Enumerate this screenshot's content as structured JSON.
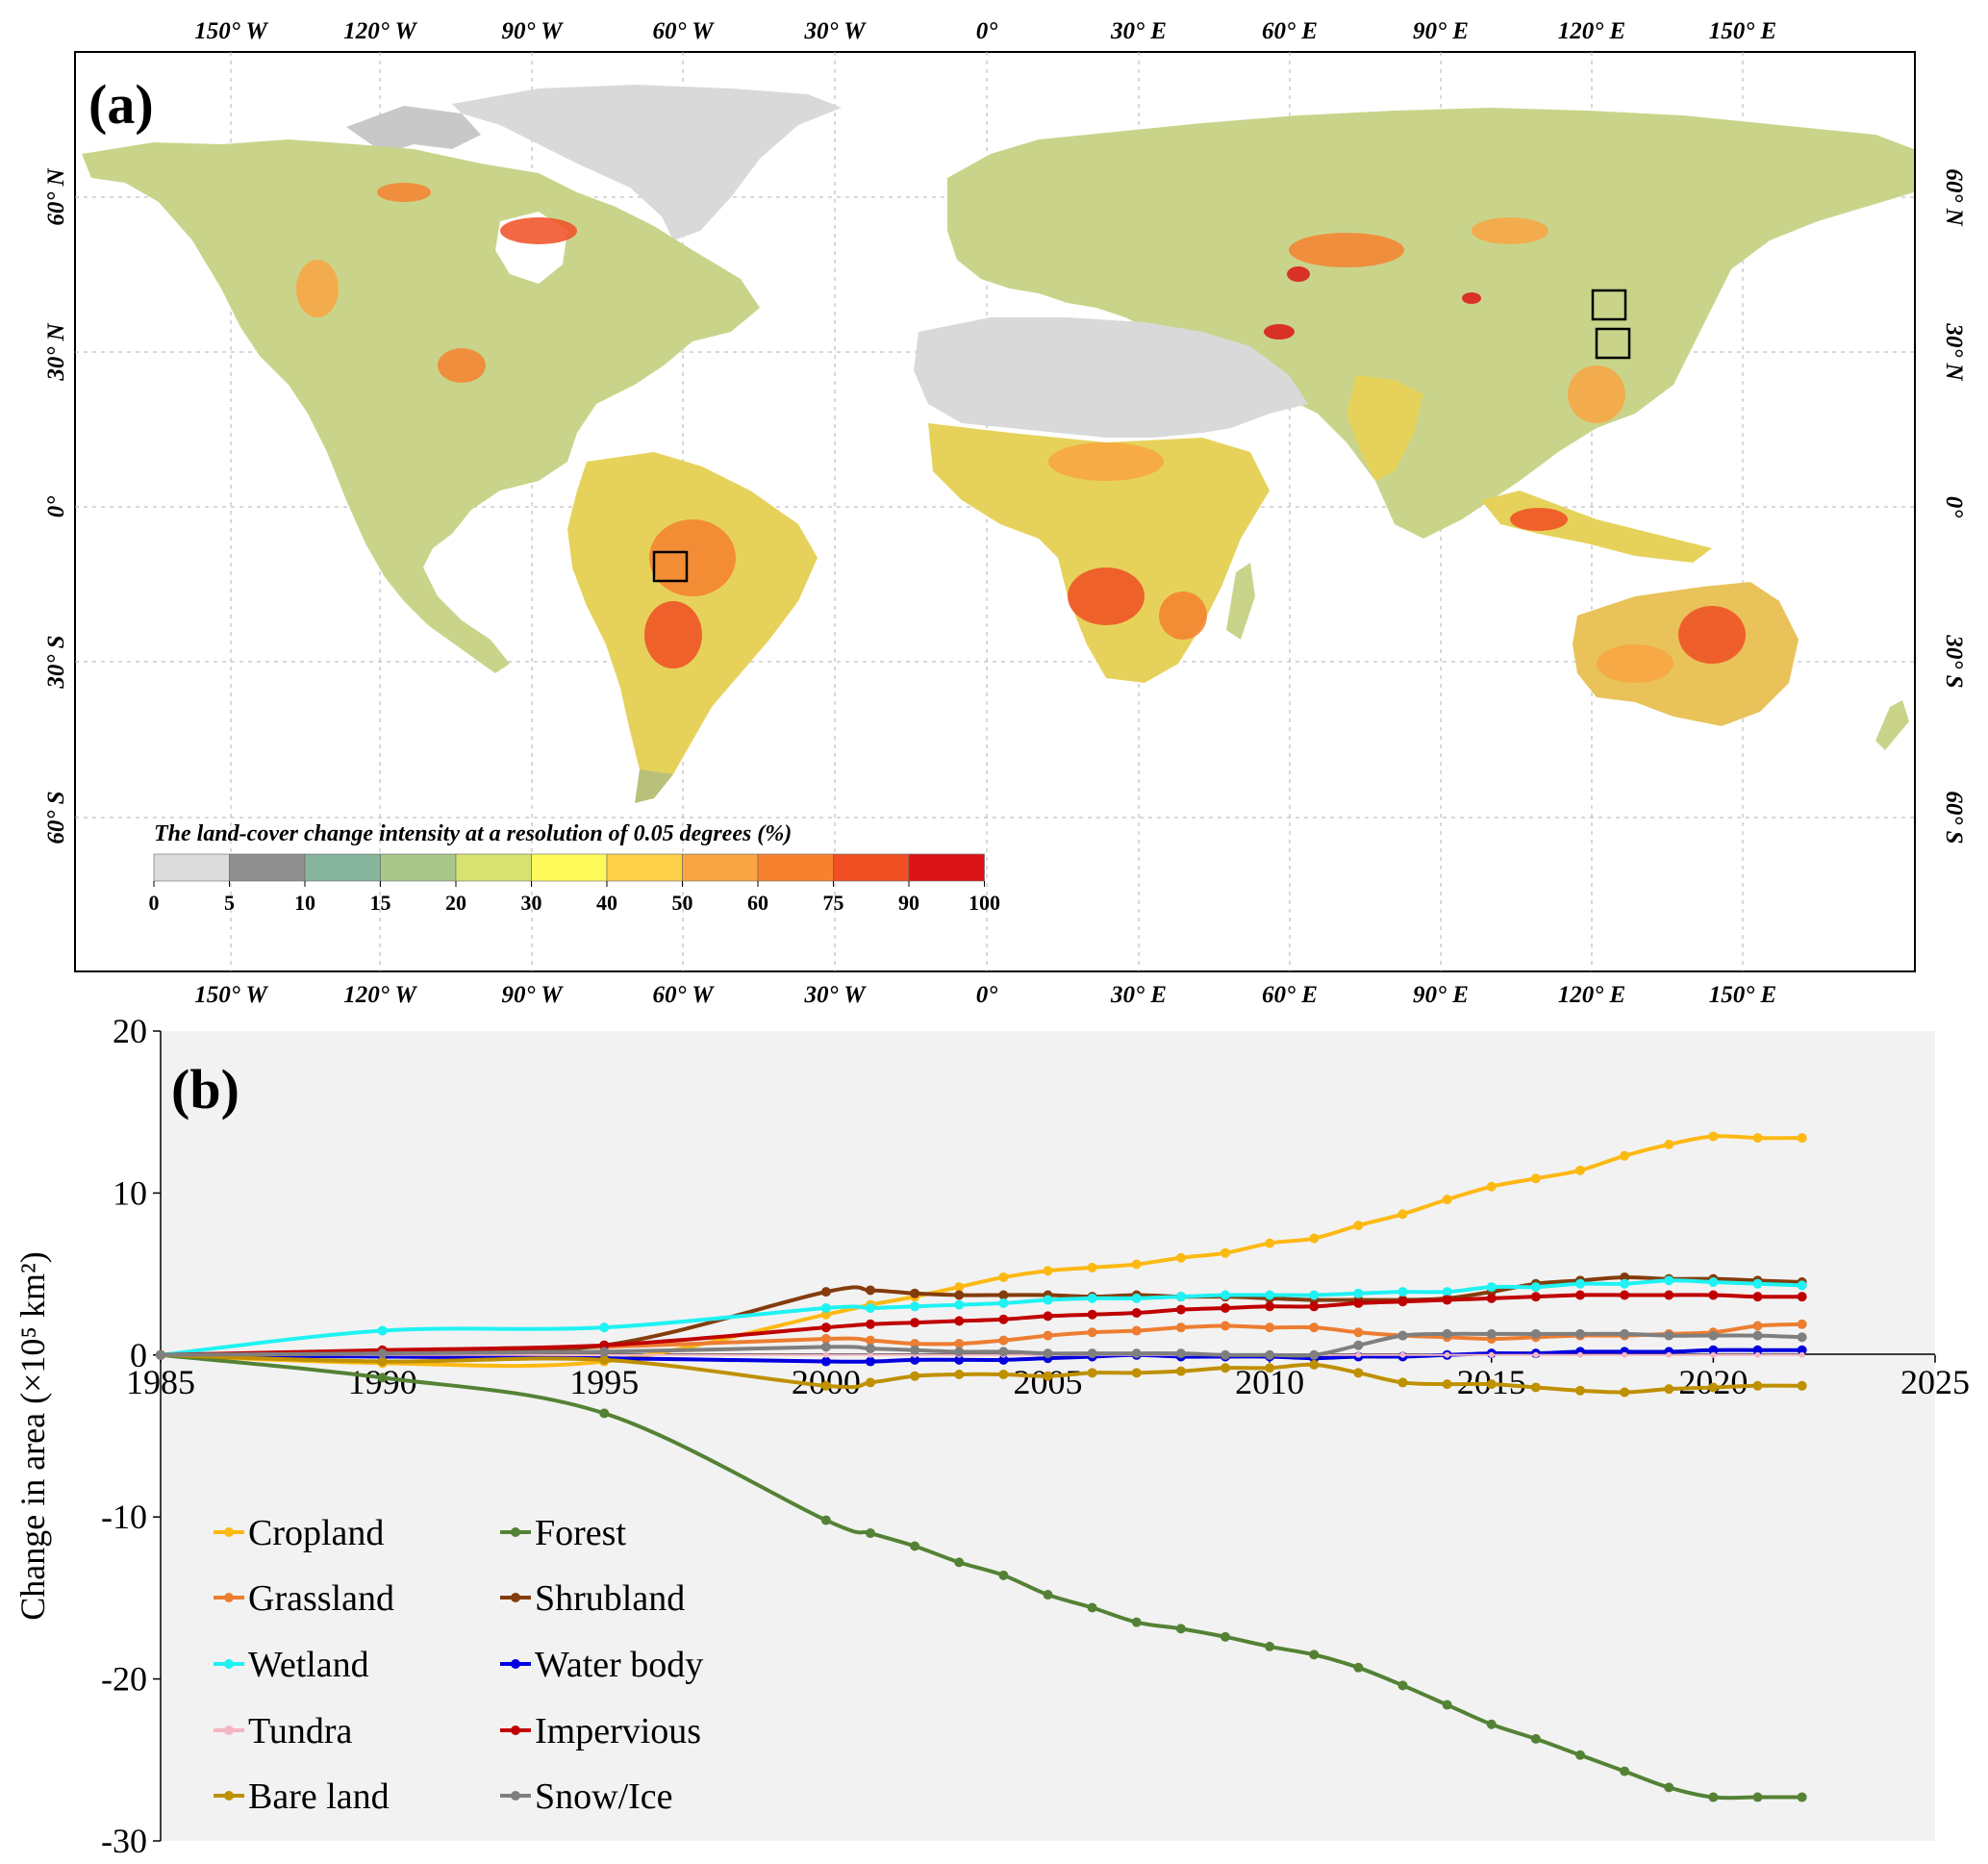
{
  "panel_a": {
    "label": "(a)",
    "lon_ticks": [
      "150° W",
      "120° W",
      "90° W",
      "60° W",
      "30° W",
      "0°",
      "30° E",
      "60° E",
      "90° E",
      "120° E",
      "150° E"
    ],
    "lat_ticks": [
      "60° N",
      "30° N",
      "0°",
      "30° S",
      "60° S"
    ],
    "legend_title": "The land-cover change intensity at a resolution of 0.05 degrees (%)",
    "legend_ticks": [
      "0",
      "5",
      "10",
      "15",
      "20",
      "30",
      "40",
      "50",
      "60",
      "75",
      "90",
      "100"
    ],
    "legend_colors": [
      "#dcdcdc",
      "#8f8f8f",
      "#86b49d",
      "#a9c78b",
      "#d7e371",
      "#fdfa5a",
      "#fdd04a",
      "#f9a542",
      "#f6822f",
      "#f04e23",
      "#dc1417"
    ]
  },
  "chart_data": {
    "type": "line",
    "label": "(b)",
    "xlabel": "",
    "ylabel": "Change in area (×10⁵ km²)",
    "xlim": [
      1985,
      2025
    ],
    "ylim": [
      -30,
      20
    ],
    "xticks": [
      "1985",
      "1990",
      "1995",
      "2000",
      "2005",
      "2010",
      "2015",
      "2020",
      "2025"
    ],
    "yticks": [
      "20",
      "10",
      "0",
      "-10",
      "-20",
      "-30"
    ],
    "x": [
      1985,
      1990,
      1995,
      2000,
      2001,
      2002,
      2003,
      2004,
      2005,
      2006,
      2007,
      2008,
      2009,
      2010,
      2011,
      2012,
      2013,
      2014,
      2015,
      2016,
      2017,
      2018,
      2019,
      2020,
      2021,
      2022
    ],
    "series": [
      {
        "name": "Cropland",
        "color": "#fdb913",
        "values": [
          0,
          -0.5,
          -0.4,
          2.5,
          3.1,
          3.6,
          4.2,
          4.8,
          5.2,
          5.4,
          5.6,
          6.0,
          6.3,
          6.9,
          7.2,
          8.0,
          8.7,
          9.6,
          10.4,
          10.9,
          11.4,
          12.3,
          13.0,
          13.5,
          13.4,
          13.4
        ]
      },
      {
        "name": "Forest",
        "color": "#548235",
        "values": [
          0,
          -1.4,
          -3.6,
          -10.2,
          -11.0,
          -11.8,
          -12.8,
          -13.6,
          -14.8,
          -15.6,
          -16.5,
          -16.9,
          -17.4,
          -18.0,
          -18.5,
          -19.3,
          -20.4,
          -21.6,
          -22.8,
          -23.7,
          -24.7,
          -25.7,
          -26.7,
          -27.3,
          -27.3,
          -27.3
        ]
      },
      {
        "name": "Grassland",
        "color": "#ed7d31",
        "values": [
          0,
          0.2,
          0.5,
          1.0,
          0.9,
          0.7,
          0.7,
          0.9,
          1.2,
          1.4,
          1.5,
          1.7,
          1.8,
          1.7,
          1.7,
          1.4,
          1.2,
          1.1,
          1.0,
          1.1,
          1.2,
          1.2,
          1.3,
          1.4,
          1.8,
          1.9
        ]
      },
      {
        "name": "Shrubland",
        "color": "#843c0c",
        "values": [
          0,
          0.2,
          0.6,
          3.9,
          4.0,
          3.8,
          3.7,
          3.7,
          3.7,
          3.6,
          3.7,
          3.6,
          3.6,
          3.5,
          3.4,
          3.4,
          3.4,
          3.5,
          3.9,
          4.4,
          4.6,
          4.8,
          4.7,
          4.7,
          4.6,
          4.5
        ]
      },
      {
        "name": "Wetland",
        "color": "#1ff2f2",
        "values": [
          0,
          1.5,
          1.7,
          2.9,
          2.9,
          3.0,
          3.1,
          3.2,
          3.4,
          3.5,
          3.5,
          3.6,
          3.7,
          3.7,
          3.7,
          3.8,
          3.9,
          3.9,
          4.2,
          4.2,
          4.4,
          4.4,
          4.6,
          4.5,
          4.4,
          4.3
        ]
      },
      {
        "name": "Water body",
        "color": "#0000e0",
        "values": [
          0,
          -0.1,
          -0.2,
          -0.4,
          -0.4,
          -0.3,
          -0.3,
          -0.3,
          -0.2,
          -0.1,
          0,
          -0.1,
          -0.1,
          -0.1,
          -0.2,
          -0.1,
          -0.1,
          0,
          0.1,
          0.1,
          0.2,
          0.2,
          0.2,
          0.3,
          0.3,
          0.3
        ]
      },
      {
        "name": "Tundra",
        "color": "#f4b6c2",
        "values": [
          0,
          0,
          0,
          0,
          0,
          0,
          0,
          0,
          0,
          0,
          0,
          0,
          0,
          0,
          0,
          0,
          0,
          0,
          0,
          0,
          0,
          0,
          0,
          0,
          0,
          0
        ]
      },
      {
        "name": "Impervious",
        "color": "#c00000",
        "values": [
          0,
          0.3,
          0.6,
          1.7,
          1.9,
          2.0,
          2.1,
          2.2,
          2.4,
          2.5,
          2.6,
          2.8,
          2.9,
          3.0,
          3.0,
          3.2,
          3.3,
          3.4,
          3.5,
          3.6,
          3.7,
          3.7,
          3.7,
          3.7,
          3.6,
          3.6
        ]
      },
      {
        "name": "Bare land",
        "color": "#bf9000",
        "values": [
          0,
          -0.4,
          -0.3,
          -1.9,
          -1.7,
          -1.3,
          -1.2,
          -1.2,
          -1.3,
          -1.1,
          -1.1,
          -1.0,
          -0.8,
          -0.8,
          -0.6,
          -1.1,
          -1.7,
          -1.8,
          -1.8,
          -2.0,
          -2.2,
          -2.3,
          -2.1,
          -2.0,
          -1.9,
          -1.9
        ]
      },
      {
        "name": "Snow/Ice",
        "color": "#7f7f7f",
        "values": [
          0,
          0.1,
          0.2,
          0.5,
          0.4,
          0.3,
          0.2,
          0.2,
          0.1,
          0.1,
          0.1,
          0.1,
          0.0,
          0.0,
          0.0,
          0.6,
          1.2,
          1.3,
          1.3,
          1.3,
          1.3,
          1.3,
          1.2,
          1.2,
          1.2,
          1.1
        ]
      }
    ],
    "legend": {
      "placement": "bottom-left",
      "columns": 2
    },
    "grid": false,
    "background": "#f2f2f2"
  }
}
